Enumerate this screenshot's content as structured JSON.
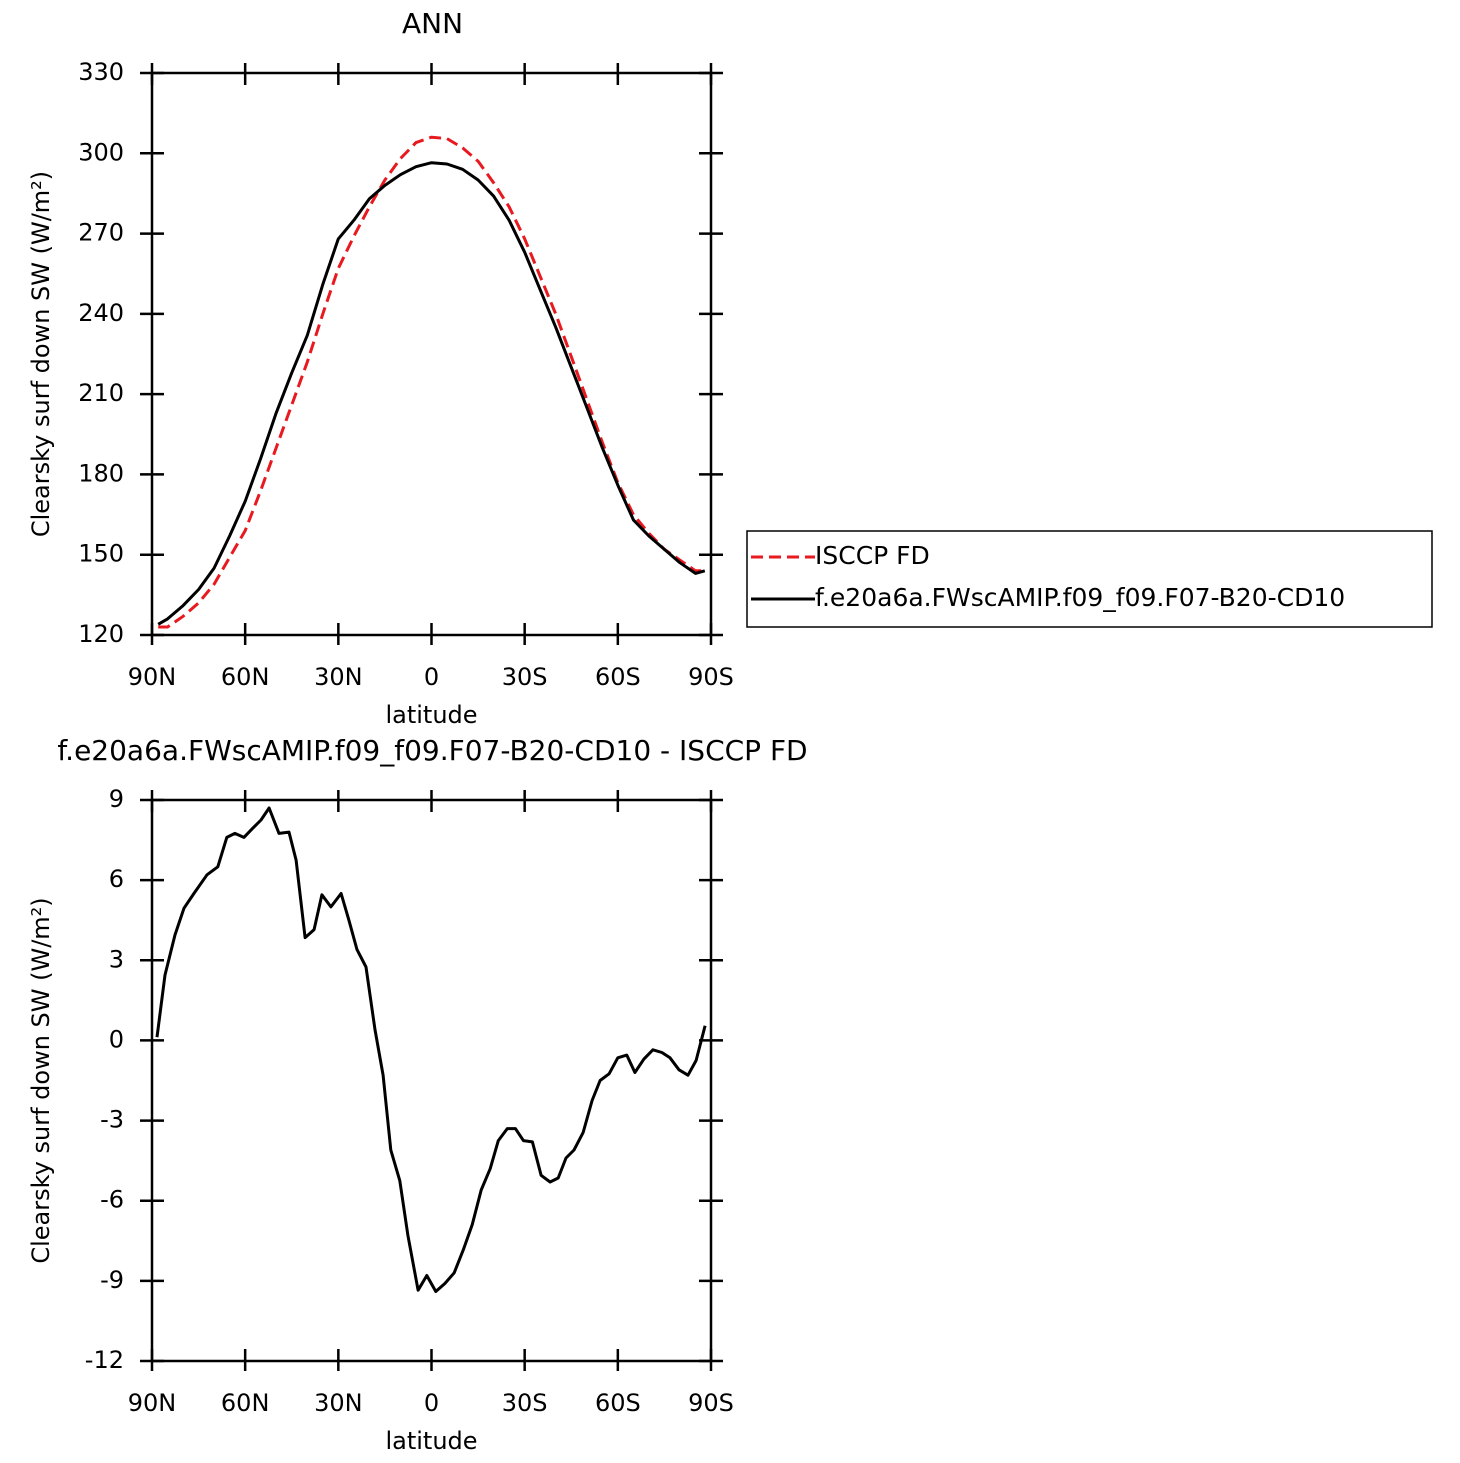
{
  "chart_data": [
    {
      "type": "line",
      "title": "ANN",
      "xlabel": "latitude",
      "ylabel": "Clearsky surf down SW (W/m²)",
      "xlim": [
        90,
        -90
      ],
      "xticks": [
        {
          "value": 90,
          "label": "90N"
        },
        {
          "value": 60,
          "label": "60N"
        },
        {
          "value": 30,
          "label": "30N"
        },
        0,
        {
          "value": -30,
          "label": "30S"
        },
        {
          "value": -60,
          "label": "60S"
        },
        {
          "value": -90,
          "label": "90S"
        }
      ],
      "ylim": [
        120,
        330
      ],
      "yticks": [
        120,
        150,
        180,
        210,
        240,
        270,
        300,
        330
      ],
      "legend": "right",
      "x": [
        88,
        85,
        80,
        75,
        70,
        65,
        60,
        55,
        50,
        45,
        40,
        35,
        30,
        25,
        20,
        15,
        10,
        5,
        0,
        -5,
        -10,
        -15,
        -20,
        -25,
        -30,
        -35,
        -40,
        -45,
        -50,
        -55,
        -60,
        -65,
        -70,
        -75,
        -80,
        -85,
        -88
      ],
      "series": [
        {
          "name": "ISCCP FD",
          "color": "#e8191f",
          "linestyle": "dashed",
          "values": [
            123,
            123,
            127,
            132,
            139,
            149,
            159,
            174,
            190,
            206,
            222,
            240,
            257,
            269,
            280,
            290,
            298,
            304,
            306,
            305.5,
            302,
            297,
            289,
            280,
            268,
            254,
            240,
            224,
            208,
            192,
            177,
            165,
            158,
            152,
            148,
            144,
            144
          ]
        },
        {
          "name": "f.e20a6a.FWscAMIP.f09_f09.F07-B20-CD10",
          "color": "#000000",
          "linestyle": "solid",
          "values": [
            124,
            126,
            131,
            137,
            145,
            157,
            170,
            186,
            203,
            218,
            232,
            251,
            268,
            275,
            283,
            288,
            292,
            295,
            296.5,
            296,
            294,
            290,
            284,
            275,
            263,
            249,
            235,
            220,
            205,
            190,
            176,
            163,
            157,
            152,
            147,
            143,
            144
          ]
        }
      ]
    },
    {
      "type": "line",
      "title": "f.e20a6a.FWscAMIP.f09_f09.F07-B20-CD10 - ISCCP FD",
      "xlabel": "latitude",
      "ylabel": "Clearsky surf down SW (W/m²)",
      "xlim": [
        90,
        -90
      ],
      "xticks": [
        {
          "value": 90,
          "label": "90N"
        },
        {
          "value": 60,
          "label": "60N"
        },
        {
          "value": 30,
          "label": "30N"
        },
        0,
        {
          "value": -30,
          "label": "30S"
        },
        {
          "value": -60,
          "label": "60S"
        },
        {
          "value": -90,
          "label": "90S"
        }
      ],
      "ylim": [
        -12,
        9
      ],
      "yticks": [
        -12,
        -9,
        -6,
        -3,
        0,
        3,
        6,
        9
      ],
      "x": [
        88.4,
        85.8,
        82.6,
        79.7,
        76.5,
        72.3,
        68.8,
        65.9,
        63.3,
        60.4,
        57.5,
        54.9,
        52.3,
        49.1,
        45.9,
        43.6,
        40.7,
        37.8,
        35.3,
        32.4,
        29.1,
        26.6,
        24,
        21.1,
        18.2,
        15.6,
        13.1,
        10.2,
        7.6,
        4.3,
        1.5,
        -1.4,
        -4.3,
        -7.3,
        -10.2,
        -13.1,
        -16,
        -18.9,
        -21.5,
        -24.4,
        -27,
        -29.6,
        -32.5,
        -35.3,
        -38.2,
        -40.8,
        -43.3,
        -45.9,
        -48.8,
        -51.7,
        -54.3,
        -57.2,
        -60,
        -62.9,
        -65.5,
        -68.4,
        -71.3,
        -74.2,
        -76.8,
        -79.7,
        -82.6,
        -85.2,
        -88.1
      ],
      "series": [
        {
          "color": "#000000",
          "linestyle": "solid",
          "values": [
            0.12,
            2.45,
            3.95,
            4.95,
            5.5,
            6.2,
            6.5,
            7.6,
            7.75,
            7.6,
            7.95,
            8.25,
            8.7,
            7.75,
            7.8,
            6.75,
            3.85,
            4.15,
            5.45,
            5.0,
            5.5,
            4.5,
            3.4,
            2.75,
            0.4,
            -1.3,
            -4.1,
            -5.25,
            -7.3,
            -9.35,
            -8.8,
            -9.4,
            -9.1,
            -8.7,
            -7.85,
            -6.9,
            -5.6,
            -4.8,
            -3.75,
            -3.3,
            -3.3,
            -3.75,
            -3.8,
            -5.05,
            -5.3,
            -5.15,
            -4.4,
            -4.1,
            -3.45,
            -2.25,
            -1.5,
            -1.25,
            -0.65,
            -0.55,
            -1.2,
            -0.7,
            -0.35,
            -0.45,
            -0.65,
            -1.1,
            -1.3,
            -0.75,
            0.55
          ]
        }
      ]
    }
  ]
}
